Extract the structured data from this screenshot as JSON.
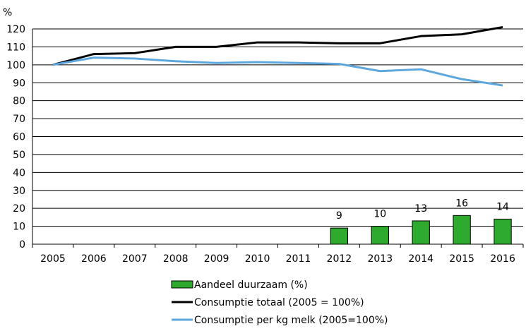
{
  "chart_data": {
    "type": "bar",
    "y_unit_label": "%",
    "ylim": [
      0,
      120
    ],
    "y_ticks": [
      0,
      10,
      20,
      30,
      40,
      50,
      60,
      70,
      80,
      90,
      100,
      110,
      120
    ],
    "grid": true,
    "legend_position": "bottom",
    "categories": [
      "2005",
      "2006",
      "2007",
      "2008",
      "2009",
      "2010",
      "2011",
      "2012",
      "2013",
      "2014",
      "2015",
      "2016"
    ],
    "series": [
      {
        "name": "Aandeel duurzaam (%)",
        "type": "bar",
        "color": "#2eaa2e",
        "values": [
          null,
          null,
          null,
          null,
          null,
          null,
          null,
          9,
          10,
          13,
          16,
          14
        ],
        "data_labels": [
          "",
          "",
          "",
          "",
          "",
          "",
          "",
          "9",
          "10",
          "13",
          "16",
          "14"
        ]
      },
      {
        "name": "Consumptie totaal (2005 = 100%)",
        "type": "line",
        "color": "#000000",
        "values": [
          100,
          106,
          106.5,
          110,
          110,
          112.5,
          112.5,
          112,
          112,
          116,
          117,
          121
        ]
      },
      {
        "name": "Consumptie per kg melk (2005=100%)",
        "type": "line",
        "color": "#5ea7dd",
        "values": [
          100,
          104,
          103.5,
          102,
          101,
          101.5,
          101,
          100.5,
          96.5,
          97.5,
          92,
          88.5
        ]
      }
    ]
  }
}
